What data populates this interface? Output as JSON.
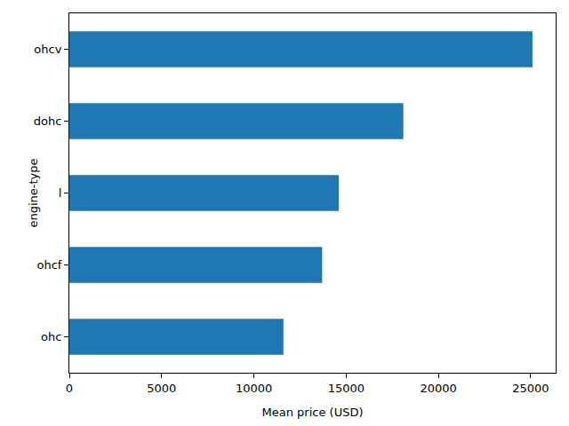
{
  "chart_data": {
    "type": "bar",
    "orientation": "horizontal",
    "categories": [
      "ohc",
      "ohcf",
      "l",
      "dohc",
      "ohcv"
    ],
    "values": [
      11600,
      13700,
      14600,
      18100,
      25100
    ],
    "color": "#1f77b4",
    "x_label": "Mean price (USD)",
    "y_label": "engine-type",
    "xlim": [
      0,
      26355
    ],
    "xticks": [
      0,
      5000,
      10000,
      15000,
      20000,
      25000
    ],
    "grid": false
  }
}
